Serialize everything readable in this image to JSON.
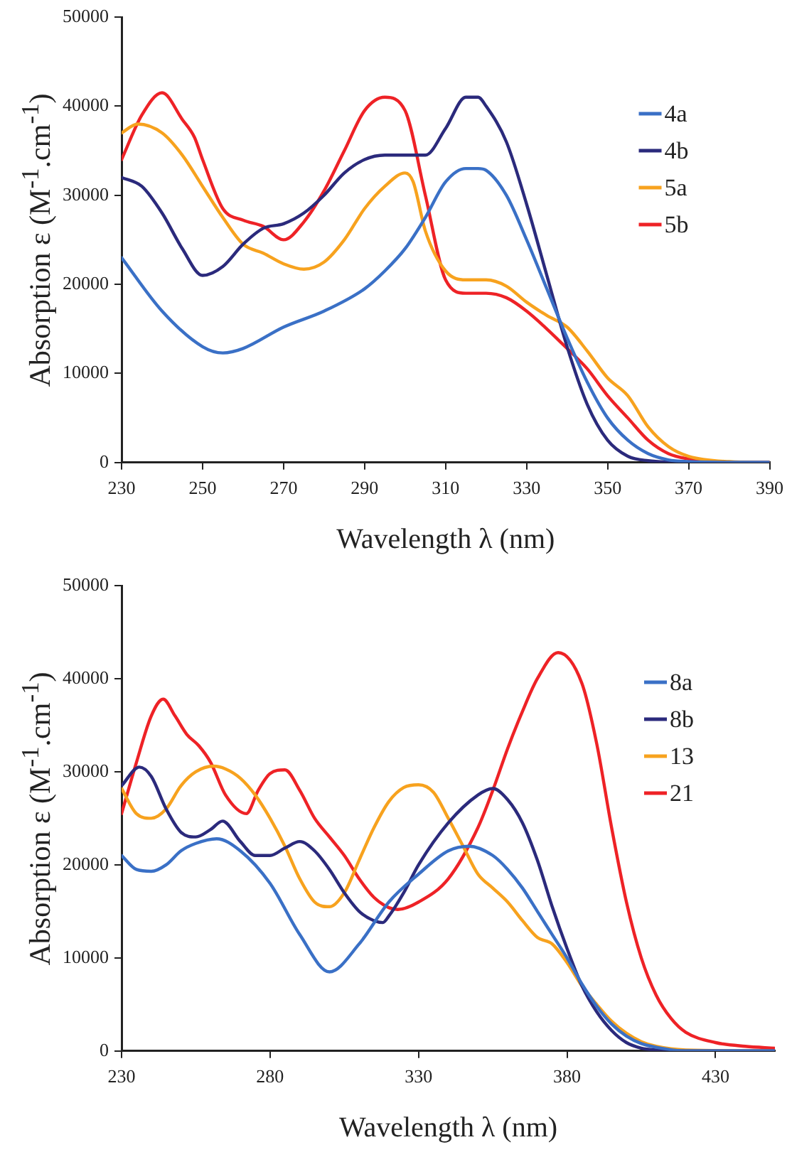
{
  "chart_data": [
    {
      "type": "line",
      "xlabel": "Wavelength λ (nm)",
      "ylabel": "Absorption ε (M$^{-1}$.cm$^{-1}$)",
      "xlim": [
        230,
        390
      ],
      "xticks": [
        230,
        250,
        270,
        290,
        310,
        330,
        350,
        370,
        390
      ],
      "ylim": [
        0,
        50000
      ],
      "yticks": [
        0,
        10000,
        20000,
        30000,
        40000,
        50000
      ],
      "grid": false,
      "legend": "top right",
      "marker": "none",
      "line_style": "solid",
      "series": [
        {
          "name": "4a",
          "color": "#3a70c6",
          "x": [
            230,
            240,
            250,
            255,
            260,
            270,
            280,
            290,
            295,
            300,
            305,
            310,
            315,
            318,
            320,
            325,
            330,
            335,
            340,
            345,
            350,
            355,
            360,
            365,
            370,
            380,
            390
          ],
          "values": [
            23000,
            17000,
            13000,
            12300,
            12800,
            15200,
            17000,
            19500,
            21500,
            24000,
            27500,
            31500,
            33000,
            33000,
            32800,
            30000,
            25000,
            19500,
            14000,
            9000,
            5000,
            2500,
            1000,
            300,
            100,
            0,
            0
          ]
        },
        {
          "name": "4b",
          "color": "#2b2a7c",
          "x": [
            230,
            235,
            240,
            245,
            250,
            255,
            260,
            265,
            270,
            275,
            280,
            285,
            290,
            295,
            300,
            305,
            310,
            315,
            318,
            320,
            325,
            330,
            335,
            340,
            345,
            350,
            355,
            360,
            370,
            390
          ],
          "values": [
            32000,
            31000,
            28000,
            24000,
            21000,
            22000,
            24500,
            26300,
            26800,
            28000,
            30000,
            32500,
            34000,
            34500,
            34500,
            34500,
            37500,
            41000,
            41000,
            40000,
            36000,
            29000,
            21000,
            13000,
            6500,
            2500,
            700,
            200,
            0,
            0
          ]
        },
        {
          "name": "5a",
          "color": "#f7a21e",
          "x": [
            230,
            234,
            240,
            245,
            250,
            255,
            260,
            265,
            270,
            275,
            280,
            285,
            290,
            295,
            300,
            302,
            305,
            310,
            315,
            320,
            325,
            330,
            335,
            340,
            345,
            350,
            355,
            360,
            365,
            370,
            380,
            390
          ],
          "values": [
            37000,
            38000,
            37000,
            34500,
            31000,
            27500,
            24500,
            23500,
            22300,
            21700,
            22500,
            25000,
            28500,
            31000,
            32500,
            31500,
            26000,
            21500,
            20500,
            20500,
            19800,
            18000,
            16500,
            15200,
            12500,
            9500,
            7500,
            4000,
            1800,
            700,
            100,
            0
          ]
        },
        {
          "name": "5b",
          "color": "#ee2226",
          "x": [
            230,
            235,
            240,
            245,
            248,
            250,
            255,
            260,
            265,
            270,
            275,
            280,
            285,
            290,
            295,
            300,
            305,
            310,
            315,
            320,
            325,
            330,
            335,
            340,
            345,
            350,
            355,
            360,
            365,
            370,
            380,
            390
          ],
          "values": [
            34000,
            39000,
            41500,
            38500,
            36500,
            34000,
            28500,
            27200,
            26500,
            25000,
            27000,
            30500,
            35000,
            39500,
            41000,
            39500,
            30000,
            20500,
            19000,
            19000,
            18500,
            17000,
            15000,
            12800,
            10500,
            7500,
            5000,
            2500,
            1000,
            400,
            0,
            0
          ]
        }
      ]
    },
    {
      "type": "line",
      "xlabel": "Wavelength λ (nm)",
      "ylabel": "Absorption ε (M$^{-1}$.cm$^{-1}$)",
      "xlim": [
        230,
        450
      ],
      "xticks": [
        230,
        280,
        330,
        380,
        430
      ],
      "ylim": [
        0,
        50000
      ],
      "yticks": [
        0,
        10000,
        20000,
        30000,
        40000,
        50000
      ],
      "grid": false,
      "legend": "top right",
      "marker": "none",
      "line_style": "solid",
      "series": [
        {
          "name": "8a",
          "color": "#3a70c6",
          "x": [
            230,
            235,
            240,
            245,
            250,
            255,
            262,
            270,
            280,
            290,
            300,
            310,
            320,
            330,
            340,
            347,
            355,
            360,
            365,
            370,
            375,
            380,
            385,
            390,
            395,
            400,
            405,
            410,
            420,
            450
          ],
          "values": [
            21000,
            19500,
            19300,
            20000,
            21500,
            22300,
            22800,
            21500,
            18000,
            12500,
            8500,
            11500,
            16000,
            19000,
            21500,
            22000,
            21000,
            19500,
            17500,
            15000,
            12500,
            10000,
            7200,
            4800,
            2900,
            1600,
            800,
            400,
            0,
            0
          ]
        },
        {
          "name": "8b",
          "color": "#2b2a7c",
          "x": [
            230,
            236,
            240,
            245,
            250,
            255,
            260,
            264,
            270,
            275,
            280,
            285,
            290,
            295,
            300,
            305,
            310,
            315,
            318,
            320,
            325,
            330,
            340,
            350,
            355,
            360,
            365,
            370,
            375,
            380,
            385,
            390,
            395,
            400,
            405,
            410,
            420,
            450
          ],
          "values": [
            28500,
            30500,
            29500,
            26000,
            23500,
            23000,
            23800,
            24700,
            22500,
            21000,
            21000,
            21800,
            22500,
            21500,
            19500,
            17000,
            15000,
            14000,
            13800,
            14500,
            17000,
            20000,
            24500,
            27500,
            28200,
            27000,
            24500,
            20500,
            15500,
            11000,
            7000,
            4200,
            2200,
            900,
            300,
            100,
            0,
            0
          ]
        },
        {
          "name": "13",
          "color": "#f7a21e",
          "x": [
            230,
            235,
            240,
            245,
            250,
            255,
            261,
            265,
            270,
            275,
            280,
            285,
            290,
            295,
            300,
            305,
            310,
            315,
            320,
            325,
            330,
            335,
            340,
            345,
            350,
            355,
            360,
            365,
            370,
            375,
            380,
            385,
            390,
            395,
            400,
            405,
            410,
            420,
            450
          ],
          "values": [
            28200,
            25500,
            25000,
            26000,
            28500,
            30000,
            30600,
            30300,
            29300,
            27500,
            25000,
            22000,
            18500,
            16000,
            15500,
            17000,
            20500,
            24000,
            26800,
            28300,
            28600,
            27800,
            25000,
            22000,
            19000,
            17500,
            16000,
            14000,
            12200,
            11500,
            9500,
            7000,
            5000,
            3200,
            1900,
            1000,
            500,
            100,
            0
          ]
        },
        {
          "name": "21",
          "color": "#ee2226",
          "x": [
            230,
            235,
            240,
            244,
            248,
            252,
            256,
            260,
            265,
            272,
            276,
            280,
            285,
            290,
            295,
            300,
            305,
            310,
            315,
            320,
            323,
            330,
            340,
            350,
            355,
            360,
            365,
            370,
            377,
            385,
            390,
            395,
            400,
            405,
            410,
            415,
            420,
            430,
            440,
            450
          ],
          "values": [
            25500,
            31000,
            36000,
            37800,
            36000,
            34000,
            32800,
            31000,
            27500,
            25500,
            28000,
            29800,
            30200,
            28000,
            25000,
            23000,
            21000,
            18500,
            16500,
            15400,
            15200,
            16000,
            18500,
            24000,
            28000,
            32500,
            36500,
            40000,
            42800,
            39500,
            33000,
            24000,
            16000,
            10000,
            6000,
            3500,
            2000,
            900,
            500,
            300
          ]
        }
      ]
    }
  ]
}
